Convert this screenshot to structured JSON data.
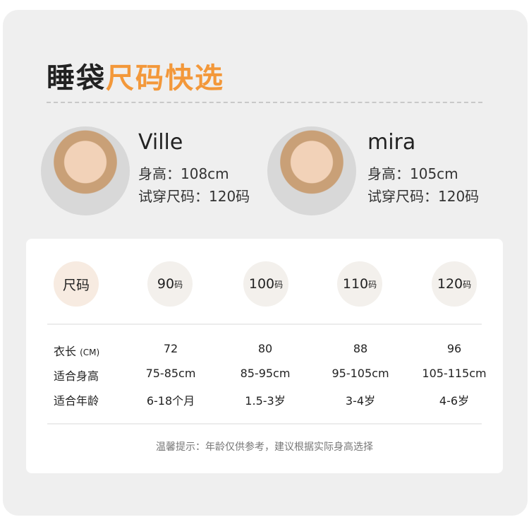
{
  "title": {
    "part1": "睡袋",
    "part2": "尺码快选"
  },
  "models": [
    {
      "name": "Ville",
      "height": "身高：108cm",
      "size": "试穿尺码：120码"
    },
    {
      "name": "mira",
      "height": "身高：105cm",
      "size": "试穿尺码：120码"
    }
  ],
  "table": {
    "header": "尺码",
    "sizes": [
      {
        "num": "90",
        "unit": "码"
      },
      {
        "num": "100",
        "unit": "码"
      },
      {
        "num": "110",
        "unit": "码"
      },
      {
        "num": "120",
        "unit": "码"
      }
    ],
    "rows": [
      {
        "label": "衣长",
        "unit": "(CM)",
        "values": [
          "72",
          "80",
          "88",
          "96"
        ]
      },
      {
        "label": "适合身高",
        "values": [
          "75-85cm",
          "85-95cm",
          "95-105cm",
          "105-115cm"
        ]
      },
      {
        "label": "适合年龄",
        "values": [
          "6-18个月",
          "1.5-3岁",
          "3-4岁",
          "4-6岁"
        ]
      }
    ],
    "note": "温馨提示：年龄仅供参考，建议根据实际身高选择"
  },
  "colors": {
    "accent": "#f3983a",
    "background": "#efefef"
  }
}
